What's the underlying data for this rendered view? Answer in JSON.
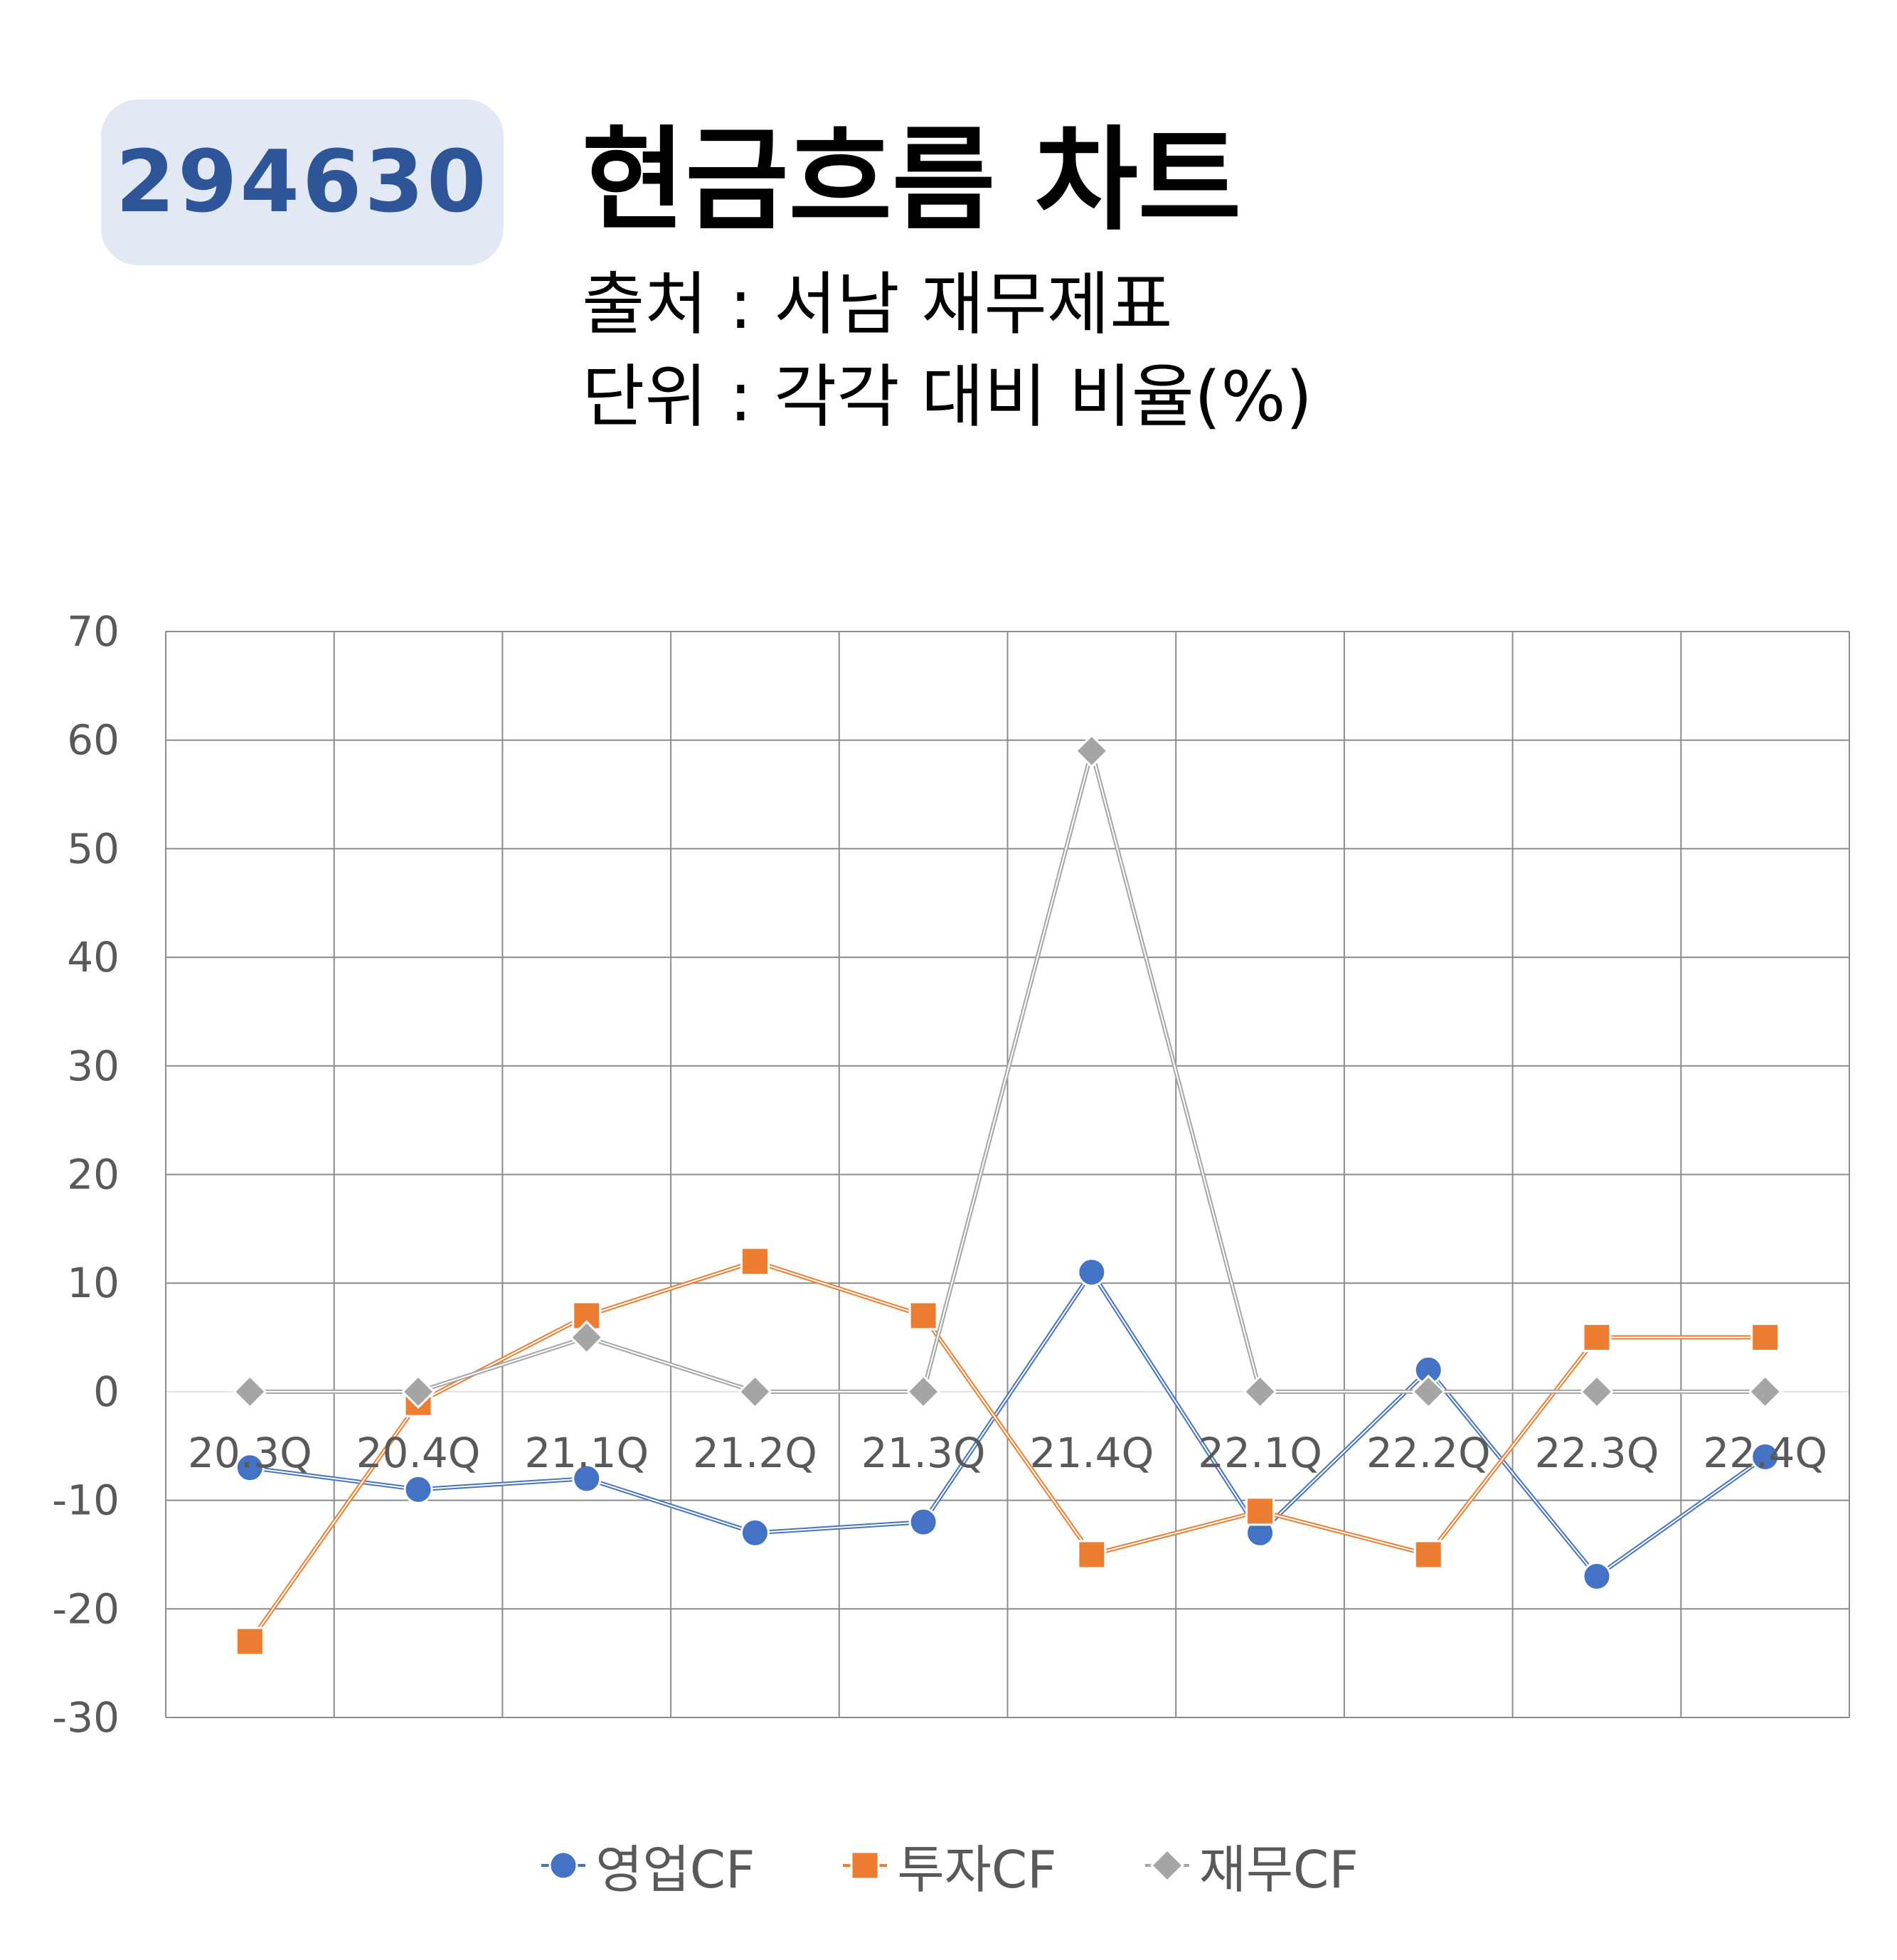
{
  "badge": {
    "code": "294630"
  },
  "header": {
    "title": "현금흐름 차트",
    "source": "출처 : 서남 재무제표",
    "unit": "단위 : 각각 대비 비율(%)"
  },
  "chart_data": {
    "type": "line",
    "categories": [
      "20.3Q",
      "20.4Q",
      "21.1Q",
      "21.2Q",
      "21.3Q",
      "21.4Q",
      "22.1Q",
      "22.2Q",
      "22.3Q",
      "22.4Q"
    ],
    "series": [
      {
        "name": "영업CF",
        "marker": "circle",
        "color": "#4472c4",
        "values": [
          -7,
          -9,
          -8,
          -13,
          -12,
          11,
          -13,
          2,
          -17,
          -6
        ]
      },
      {
        "name": "투자CF",
        "marker": "square",
        "color": "#ed7d31",
        "values": [
          -23,
          -1,
          7,
          12,
          7,
          -15,
          -11,
          -15,
          5,
          5
        ]
      },
      {
        "name": "재무CF",
        "marker": "diamond",
        "color": "#a5a5a5",
        "values": [
          0,
          0,
          5,
          0,
          0,
          59,
          0,
          0,
          0,
          0
        ]
      }
    ],
    "ylim": [
      -30,
      70
    ],
    "yticks": [
      70,
      60,
      50,
      40,
      30,
      20,
      10,
      0,
      -10,
      -20,
      -30
    ],
    "grid": true,
    "legend_position": "bottom"
  }
}
